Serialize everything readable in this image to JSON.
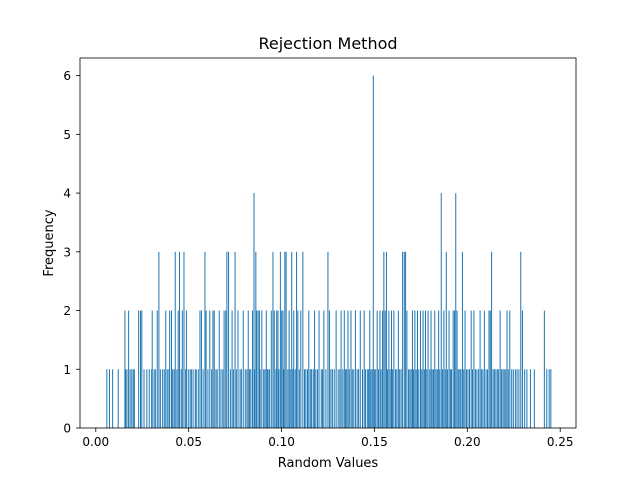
{
  "chart_data": {
    "type": "bar",
    "title": "Rejection Method",
    "xlabel": "Random Values",
    "ylabel": "Frequency",
    "xlim": [
      -0.0085,
      0.2585
    ],
    "ylim": [
      0,
      6.3
    ],
    "xticks": [
      "0.00",
      "0.05",
      "0.10",
      "0.15",
      "0.20",
      "0.25"
    ],
    "yticks": [
      "0",
      "1",
      "2",
      "3",
      "4",
      "5",
      "6"
    ],
    "grid": false,
    "legend": "none",
    "bin_width": 0.00026,
    "color": "#1f77b4",
    "bars": [
      [
        0.0057,
        1
      ],
      [
        0.0071,
        1
      ],
      [
        0.0088,
        1
      ],
      [
        0.0118,
        1
      ],
      [
        0.0154,
        2
      ],
      [
        0.0158,
        1
      ],
      [
        0.0165,
        1
      ],
      [
        0.0174,
        2
      ],
      [
        0.0182,
        1
      ],
      [
        0.0191,
        1
      ],
      [
        0.0199,
        1
      ],
      [
        0.0205,
        1
      ],
      [
        0.0228,
        2
      ],
      [
        0.0238,
        2
      ],
      [
        0.0245,
        2
      ],
      [
        0.0257,
        1
      ],
      [
        0.0272,
        1
      ],
      [
        0.0285,
        1
      ],
      [
        0.0298,
        1
      ],
      [
        0.0301,
        2
      ],
      [
        0.0311,
        1
      ],
      [
        0.0318,
        1
      ],
      [
        0.0328,
        2
      ],
      [
        0.0337,
        3
      ],
      [
        0.0345,
        1
      ],
      [
        0.0357,
        1
      ],
      [
        0.0366,
        1
      ],
      [
        0.0374,
        2
      ],
      [
        0.0382,
        1
      ],
      [
        0.0391,
        1
      ],
      [
        0.0395,
        2
      ],
      [
        0.0405,
        2
      ],
      [
        0.0411,
        1
      ],
      [
        0.0419,
        1
      ],
      [
        0.0425,
        3
      ],
      [
        0.0434,
        1
      ],
      [
        0.0441,
        2
      ],
      [
        0.0448,
        3
      ],
      [
        0.0457,
        1
      ],
      [
        0.0463,
        2
      ],
      [
        0.0472,
        3
      ],
      [
        0.0481,
        1
      ],
      [
        0.0485,
        2
      ],
      [
        0.0495,
        1
      ],
      [
        0.0505,
        1
      ],
      [
        0.0512,
        1
      ],
      [
        0.0521,
        1
      ],
      [
        0.0533,
        1
      ],
      [
        0.0538,
        1
      ],
      [
        0.0549,
        1
      ],
      [
        0.0558,
        2
      ],
      [
        0.0566,
        2
      ],
      [
        0.0575,
        1
      ],
      [
        0.0585,
        3
      ],
      [
        0.0591,
        2
      ],
      [
        0.0601,
        1
      ],
      [
        0.0611,
        2
      ],
      [
        0.0621,
        1
      ],
      [
        0.0628,
        2
      ],
      [
        0.0635,
        2
      ],
      [
        0.0644,
        1
      ],
      [
        0.0651,
        1
      ],
      [
        0.0662,
        2
      ],
      [
        0.0671,
        1
      ],
      [
        0.0681,
        1
      ],
      [
        0.0688,
        2
      ],
      [
        0.0697,
        2
      ],
      [
        0.0703,
        3
      ],
      [
        0.0712,
        3
      ],
      [
        0.0722,
        1
      ],
      [
        0.0731,
        2
      ],
      [
        0.0738,
        1
      ],
      [
        0.0747,
        3
      ],
      [
        0.0754,
        1
      ],
      [
        0.0763,
        2
      ],
      [
        0.0774,
        1
      ],
      [
        0.0781,
        1
      ],
      [
        0.0791,
        2
      ],
      [
        0.0802,
        1
      ],
      [
        0.0811,
        1
      ],
      [
        0.0818,
        2
      ],
      [
        0.0825,
        1
      ],
      [
        0.0832,
        1
      ],
      [
        0.0841,
        2
      ],
      [
        0.0849,
        4
      ],
      [
        0.0852,
        1
      ],
      [
        0.0859,
        3
      ],
      [
        0.0863,
        2
      ],
      [
        0.0871,
        2
      ],
      [
        0.0878,
        2
      ],
      [
        0.0882,
        1
      ],
      [
        0.0891,
        2
      ],
      [
        0.0901,
        1
      ],
      [
        0.0908,
        1
      ],
      [
        0.0915,
        2
      ],
      [
        0.0921,
        1
      ],
      [
        0.0925,
        1
      ],
      [
        0.0933,
        1
      ],
      [
        0.0942,
        2
      ],
      [
        0.0951,
        3
      ],
      [
        0.0958,
        2
      ],
      [
        0.0967,
        1
      ],
      [
        0.0971,
        2
      ],
      [
        0.0978,
        2
      ],
      [
        0.0983,
        1
      ],
      [
        0.0991,
        3
      ],
      [
        0.0998,
        2
      ],
      [
        0.1005,
        2
      ],
      [
        0.1009,
        1
      ],
      [
        0.1015,
        3
      ],
      [
        0.1022,
        3
      ],
      [
        0.1031,
        1
      ],
      [
        0.1038,
        2
      ],
      [
        0.1044,
        1
      ],
      [
        0.1052,
        3
      ],
      [
        0.1058,
        1
      ],
      [
        0.1063,
        2
      ],
      [
        0.1071,
        1
      ],
      [
        0.1078,
        3
      ],
      [
        0.1085,
        2
      ],
      [
        0.1093,
        1
      ],
      [
        0.1101,
        2
      ],
      [
        0.1112,
        3
      ],
      [
        0.1121,
        1
      ],
      [
        0.1128,
        1
      ],
      [
        0.1137,
        1
      ],
      [
        0.1144,
        2
      ],
      [
        0.1152,
        1
      ],
      [
        0.1159,
        1
      ],
      [
        0.1168,
        1
      ],
      [
        0.1175,
        2
      ],
      [
        0.1182,
        1
      ],
      [
        0.1191,
        1
      ],
      [
        0.1199,
        2
      ],
      [
        0.1211,
        1
      ],
      [
        0.1218,
        1
      ],
      [
        0.1225,
        2
      ],
      [
        0.1236,
        1
      ],
      [
        0.1247,
        3
      ],
      [
        0.1255,
        2
      ],
      [
        0.1263,
        1
      ],
      [
        0.1271,
        1
      ],
      [
        0.1281,
        1
      ],
      [
        0.1291,
        2
      ],
      [
        0.1302,
        1
      ],
      [
        0.1311,
        1
      ],
      [
        0.1318,
        2
      ],
      [
        0.1327,
        1
      ],
      [
        0.1335,
        2
      ],
      [
        0.1341,
        1
      ],
      [
        0.1348,
        1
      ],
      [
        0.1355,
        2
      ],
      [
        0.1362,
        1
      ],
      [
        0.1371,
        2
      ],
      [
        0.1378,
        1
      ],
      [
        0.1386,
        1
      ],
      [
        0.1395,
        2
      ],
      [
        0.1404,
        1
      ],
      [
        0.1412,
        1
      ],
      [
        0.1421,
        2
      ],
      [
        0.1433,
        1
      ],
      [
        0.1442,
        2
      ],
      [
        0.1449,
        1
      ],
      [
        0.1459,
        1
      ],
      [
        0.1466,
        1
      ],
      [
        0.1472,
        2
      ],
      [
        0.1478,
        1
      ],
      [
        0.1485,
        1
      ],
      [
        0.1491,
        6
      ],
      [
        0.1497,
        1
      ],
      [
        0.1504,
        1
      ],
      [
        0.1512,
        2
      ],
      [
        0.1519,
        1
      ],
      [
        0.1527,
        2
      ],
      [
        0.1533,
        1
      ],
      [
        0.1541,
        2
      ],
      [
        0.1548,
        3
      ],
      [
        0.1555,
        2
      ],
      [
        0.1562,
        3
      ],
      [
        0.1568,
        1
      ],
      [
        0.1575,
        2
      ],
      [
        0.1582,
        1
      ],
      [
        0.1589,
        2
      ],
      [
        0.1595,
        1
      ],
      [
        0.1602,
        2
      ],
      [
        0.1611,
        1
      ],
      [
        0.1618,
        1
      ],
      [
        0.1626,
        2
      ],
      [
        0.1633,
        1
      ],
      [
        0.1641,
        1
      ],
      [
        0.1649,
        3
      ],
      [
        0.1658,
        3
      ],
      [
        0.1665,
        3
      ],
      [
        0.1672,
        2
      ],
      [
        0.1681,
        1
      ],
      [
        0.1688,
        1
      ],
      [
        0.1695,
        1
      ],
      [
        0.1702,
        2
      ],
      [
        0.1708,
        1
      ],
      [
        0.1715,
        2
      ],
      [
        0.1722,
        1
      ],
      [
        0.1729,
        2
      ],
      [
        0.1736,
        1
      ],
      [
        0.1745,
        2
      ],
      [
        0.1752,
        1
      ],
      [
        0.1759,
        2
      ],
      [
        0.1766,
        1
      ],
      [
        0.1772,
        2
      ],
      [
        0.1779,
        1
      ],
      [
        0.1786,
        2
      ],
      [
        0.1795,
        1
      ],
      [
        0.1802,
        2
      ],
      [
        0.1808,
        1
      ],
      [
        0.1815,
        1
      ],
      [
        0.1822,
        2
      ],
      [
        0.1829,
        1
      ],
      [
        0.1836,
        1
      ],
      [
        0.1843,
        2
      ],
      [
        0.1849,
        1
      ],
      [
        0.1857,
        4
      ],
      [
        0.1864,
        1
      ],
      [
        0.1871,
        2
      ],
      [
        0.1878,
        1
      ],
      [
        0.1884,
        3
      ],
      [
        0.1891,
        1
      ],
      [
        0.1899,
        2
      ],
      [
        0.1906,
        1
      ],
      [
        0.1912,
        1
      ],
      [
        0.1921,
        2
      ],
      [
        0.1928,
        2
      ],
      [
        0.1935,
        4
      ],
      [
        0.1942,
        2
      ],
      [
        0.1949,
        1
      ],
      [
        0.1957,
        1
      ],
      [
        0.1963,
        1
      ],
      [
        0.1971,
        3
      ],
      [
        0.1978,
        1
      ],
      [
        0.1985,
        2
      ],
      [
        0.1993,
        1
      ],
      [
        0.2001,
        1
      ],
      [
        0.2009,
        1
      ],
      [
        0.2018,
        2
      ],
      [
        0.2025,
        1
      ],
      [
        0.2033,
        2
      ],
      [
        0.2041,
        1
      ],
      [
        0.2049,
        1
      ],
      [
        0.2058,
        1
      ],
      [
        0.2066,
        2
      ],
      [
        0.2073,
        1
      ],
      [
        0.2081,
        1
      ],
      [
        0.2089,
        2
      ],
      [
        0.2098,
        1
      ],
      [
        0.2106,
        1
      ],
      [
        0.2114,
        2
      ],
      [
        0.2121,
        2
      ],
      [
        0.2128,
        3
      ],
      [
        0.2136,
        1
      ],
      [
        0.2143,
        1
      ],
      [
        0.2151,
        1
      ],
      [
        0.2159,
        1
      ],
      [
        0.2166,
        1
      ],
      [
        0.2174,
        2
      ],
      [
        0.2181,
        1
      ],
      [
        0.2189,
        1
      ],
      [
        0.2196,
        1
      ],
      [
        0.2204,
        1
      ],
      [
        0.2211,
        2
      ],
      [
        0.2218,
        1
      ],
      [
        0.2226,
        2
      ],
      [
        0.2236,
        1
      ],
      [
        0.2245,
        1
      ],
      [
        0.2256,
        1
      ],
      [
        0.2265,
        1
      ],
      [
        0.2275,
        1
      ],
      [
        0.2285,
        3
      ],
      [
        0.2294,
        2
      ],
      [
        0.2306,
        1
      ],
      [
        0.2318,
        1
      ],
      [
        0.2337,
        1
      ],
      [
        0.2358,
        1
      ],
      [
        0.2412,
        2
      ],
      [
        0.2425,
        1
      ],
      [
        0.2438,
        1
      ],
      [
        0.2447,
        1
      ]
    ]
  }
}
